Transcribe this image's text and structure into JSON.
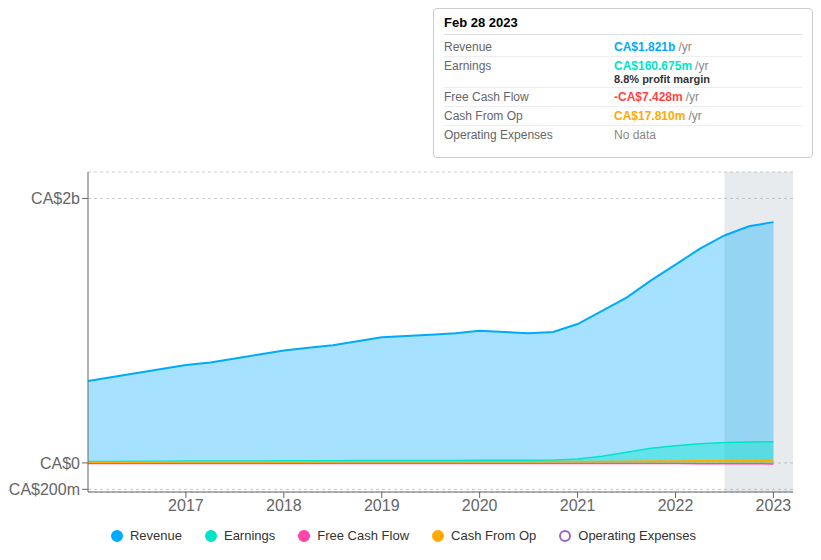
{
  "chart_data": {
    "type": "area",
    "x": [
      2016.0,
      2016.25,
      2016.5,
      2016.75,
      2017.0,
      2017.25,
      2017.5,
      2017.75,
      2018.0,
      2018.25,
      2018.5,
      2018.75,
      2019.0,
      2019.25,
      2019.5,
      2019.75,
      2020.0,
      2020.25,
      2020.5,
      2020.75,
      2021.0,
      2021.25,
      2021.5,
      2021.75,
      2022.0,
      2022.25,
      2022.5,
      2022.75,
      2023.0
    ],
    "xlim": [
      2016.0,
      2023.2
    ],
    "xticks": [
      2017,
      2018,
      2019,
      2020,
      2021,
      2022,
      2023
    ],
    "ylim": [
      -220,
      2200
    ],
    "yticks": [
      {
        "value": -200,
        "label": "-CA$200m"
      },
      {
        "value": 0,
        "label": "CA$0"
      },
      {
        "value": 2000,
        "label": "CA$2b"
      }
    ],
    "grid": true,
    "legend": "bottom",
    "highlight_start": 2022.5,
    "series": [
      {
        "name": "Revenue",
        "color": "#00aaff",
        "marker": "filled",
        "values": [
          620,
          650,
          680,
          710,
          740,
          760,
          790,
          820,
          850,
          870,
          890,
          920,
          950,
          960,
          970,
          980,
          1000,
          990,
          980,
          990,
          1050,
          1150,
          1250,
          1380,
          1500,
          1620,
          1720,
          1790,
          1821
        ]
      },
      {
        "name": "Earnings",
        "color": "#00e5c8",
        "marker": "filled",
        "values": [
          10,
          10,
          12,
          12,
          14,
          14,
          15,
          15,
          16,
          16,
          17,
          18,
          18,
          18,
          19,
          19,
          20,
          20,
          21,
          21,
          30,
          50,
          80,
          110,
          130,
          145,
          155,
          158,
          160
        ]
      },
      {
        "name": "Free Cash Flow",
        "color": "#ff44aa",
        "marker": "filled",
        "values": [
          -5,
          -5,
          -5,
          -5,
          -5,
          -5,
          -5,
          -5,
          -5,
          -4,
          -4,
          -4,
          -4,
          -4,
          -4,
          -4,
          -4,
          -4,
          -4,
          -4,
          -4,
          -4,
          -4,
          -5,
          -5,
          -6,
          -7,
          -7,
          -7.428
        ]
      },
      {
        "name": "Cash From Op",
        "color": "#ffaa00",
        "marker": "filled",
        "values": [
          5,
          5,
          5,
          6,
          6,
          6,
          7,
          7,
          7,
          7,
          8,
          8,
          8,
          8,
          9,
          9,
          9,
          9,
          9,
          10,
          10,
          10,
          12,
          14,
          15,
          16,
          17,
          17,
          17.81
        ]
      },
      {
        "name": "Operating Expenses",
        "color": "#9966cc",
        "marker": "open",
        "values": [
          null,
          null,
          null,
          null,
          null,
          null,
          null,
          null,
          null,
          null,
          null,
          null,
          null,
          null,
          null,
          null,
          null,
          null,
          null,
          null,
          null,
          null,
          null,
          null,
          null,
          null,
          null,
          null,
          null
        ]
      }
    ],
    "annotations": {
      "title": "Feb 28 2023",
      "rows": [
        {
          "label": "Revenue",
          "value": "CA$1.821b",
          "unit": "/yr",
          "color": "#00aaff"
        },
        {
          "label": "Earnings",
          "value": "CA$160.675m",
          "unit": "/yr",
          "color": "#00e5c8",
          "note": "8.8% profit margin"
        },
        {
          "label": "Free Cash Flow",
          "value": "-CA$7.428m",
          "unit": "/yr",
          "color": "#ff4444"
        },
        {
          "label": "Cash From Op",
          "value": "CA$17.810m",
          "unit": "/yr",
          "color": "#ffaa00"
        },
        {
          "label": "Operating Expenses",
          "value": "No data",
          "color": "#888888"
        }
      ]
    }
  }
}
